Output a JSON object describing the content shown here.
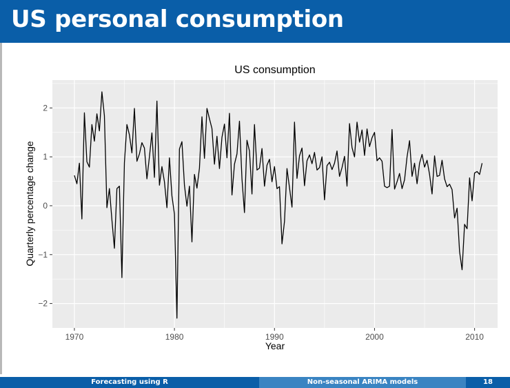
{
  "slide": {
    "title": "US personal consumption"
  },
  "footer": {
    "left": "Forecasting using R",
    "middle": "Non-seasonal ARIMA models",
    "page": "18"
  },
  "chart_data": {
    "type": "line",
    "title": "US consumption",
    "xlabel": "Year",
    "ylabel": "Quarterly percentage change",
    "xlim": [
      1967.8,
      2012.3
    ],
    "ylim": [
      -2.5,
      2.57
    ],
    "xticks": [
      1970,
      1980,
      1990,
      2000,
      2010
    ],
    "yticks": [
      -2,
      -1,
      0,
      1,
      2
    ],
    "grid": true,
    "colors": {
      "panel": "#ebebeb",
      "grid": "#ffffff",
      "line": "#000000"
    },
    "start": 1970.0,
    "step": 0.25,
    "values": [
      0.62,
      0.45,
      0.87,
      -0.27,
      1.9,
      0.9,
      0.79,
      1.66,
      1.32,
      1.88,
      1.53,
      2.33,
      1.84,
      -0.04,
      0.35,
      -0.29,
      -0.87,
      0.35,
      0.4,
      -1.47,
      0.88,
      1.66,
      1.45,
      1.08,
      1.99,
      0.91,
      1.06,
      1.29,
      1.18,
      0.55,
      1.0,
      1.49,
      0.58,
      2.14,
      0.42,
      0.8,
      0.49,
      -0.04,
      0.98,
      0.2,
      -0.17,
      -2.3,
      1.16,
      1.31,
      0.42,
      -0.01,
      0.4,
      -0.74,
      0.64,
      0.36,
      0.77,
      1.82,
      0.97,
      1.99,
      1.78,
      1.58,
      0.85,
      1.42,
      0.76,
      1.4,
      1.67,
      0.98,
      1.89,
      0.22,
      0.85,
      1.06,
      1.73,
      0.55,
      -0.14,
      1.34,
      1.12,
      0.24,
      1.66,
      0.73,
      0.77,
      1.17,
      0.4,
      0.83,
      0.95,
      0.49,
      0.8,
      0.35,
      0.39,
      -0.78,
      -0.32,
      0.76,
      0.37,
      -0.03,
      1.71,
      0.56,
      1.02,
      1.18,
      0.41,
      0.92,
      1.04,
      0.86,
      1.09,
      0.73,
      0.78,
      1.0,
      0.12,
      0.82,
      0.89,
      0.74,
      0.87,
      1.12,
      0.6,
      0.78,
      1.01,
      0.4,
      1.68,
      1.19,
      1.0,
      1.71,
      1.3,
      1.55,
      1.03,
      1.57,
      1.21,
      1.39,
      1.5,
      0.92,
      0.98,
      0.91,
      0.4,
      0.37,
      0.4,
      1.56,
      0.34,
      0.49,
      0.66,
      0.35,
      0.53,
      1.0,
      1.33,
      0.6,
      0.87,
      0.45,
      0.87,
      1.05,
      0.79,
      0.93,
      0.64,
      0.24,
      1.02,
      0.6,
      0.62,
      0.93,
      0.55,
      0.39,
      0.44,
      0.33,
      -0.25,
      -0.05,
      -0.94,
      -1.31,
      -0.38,
      -0.47,
      0.57,
      0.1,
      0.67,
      0.7,
      0.64,
      0.87
    ]
  }
}
